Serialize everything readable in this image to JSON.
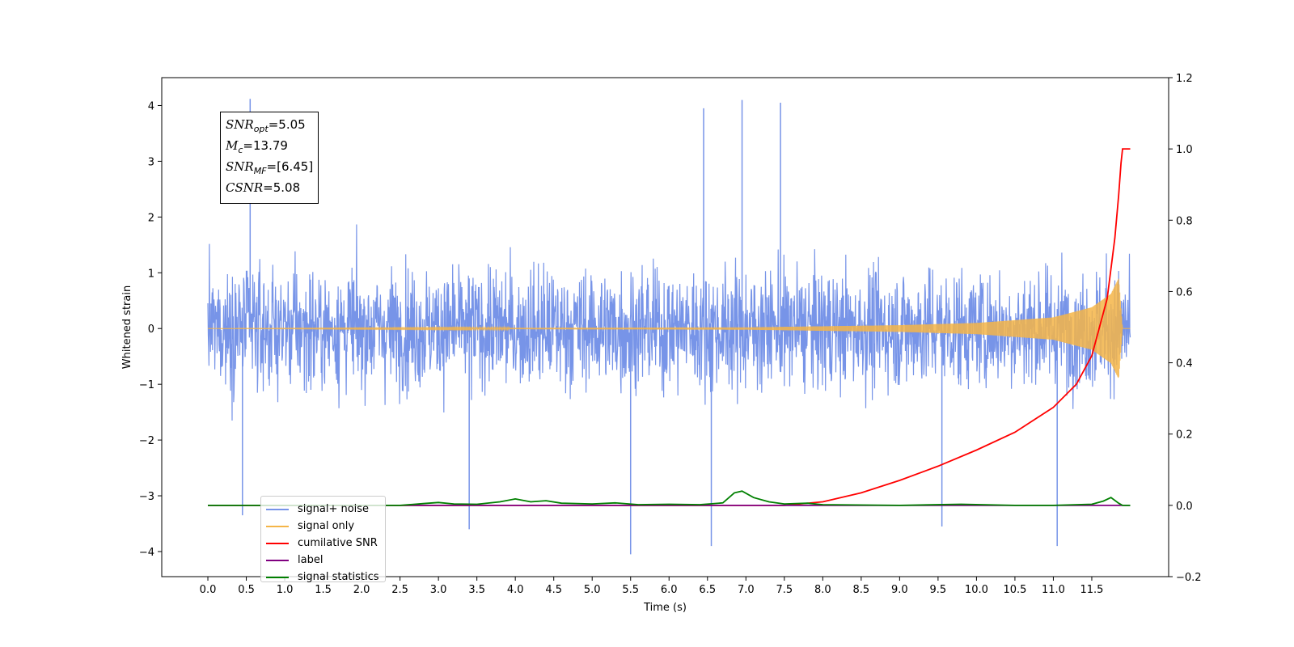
{
  "chart_data": {
    "type": "line",
    "title": "",
    "xlabel": "Time (s)",
    "ylabel": "Whitened strain",
    "ylabel_right": "",
    "xlim": [
      -0.6,
      12.5
    ],
    "ylim": [
      -4.45,
      4.5
    ],
    "ylim_right": [
      -0.2,
      1.2
    ],
    "x_ticks": [
      "0.0",
      "0.5",
      "1.0",
      "1.5",
      "2.0",
      "2.5",
      "3.0",
      "3.5",
      "4.0",
      "4.5",
      "5.0",
      "5.5",
      "6.0",
      "6.5",
      "7.0",
      "7.5",
      "8.0",
      "8.5",
      "9.0",
      "9.5",
      "10.0",
      "10.5",
      "11.0",
      "11.5"
    ],
    "y_ticks": [
      "4",
      "3",
      "2",
      "1",
      "0",
      "−1",
      "−2",
      "−3",
      "−4"
    ],
    "y_ticks_right": [
      "1.2",
      "1.0",
      "0.8",
      "0.6",
      "0.4",
      "0.2",
      "0.0",
      "−0.2"
    ],
    "grid": false,
    "legend_position": "lower-left",
    "series": [
      {
        "name": "signal+ noise",
        "color": "#7794e8",
        "axis": "left",
        "x_range": [
          0.0,
          12.0
        ],
        "typical_range": [
          -1.9,
          2.3
        ],
        "extremes": [
          {
            "x": 0.55,
            "y": 4.12
          },
          {
            "x": 6.95,
            "y": 4.1
          },
          {
            "x": 6.45,
            "y": 3.95
          },
          {
            "x": 7.45,
            "y": 4.05
          },
          {
            "x": 5.5,
            "y": -4.05
          },
          {
            "x": 6.55,
            "y": -3.9
          },
          {
            "x": 11.05,
            "y": -3.9
          },
          {
            "x": 3.4,
            "y": -3.6
          },
          {
            "x": 9.55,
            "y": -3.55
          },
          {
            "x": 0.45,
            "y": -3.35
          }
        ]
      },
      {
        "name": "signal only",
        "color": "#f5b548",
        "axis": "left",
        "x_range": [
          0.0,
          12.0
        ],
        "envelope": [
          [
            0.0,
            0.0
          ],
          [
            7.0,
            0.02
          ],
          [
            9.0,
            0.06
          ],
          [
            10.0,
            0.1
          ],
          [
            11.0,
            0.2
          ],
          [
            11.5,
            0.38
          ],
          [
            11.75,
            0.62
          ],
          [
            11.85,
            0.9
          ],
          [
            11.9,
            0.0
          ],
          [
            12.0,
            0.0
          ]
        ]
      },
      {
        "name": "cumilative SNR",
        "color": "#ff0000",
        "axis": "right",
        "x": [
          0.0,
          7.5,
          8.0,
          8.5,
          9.0,
          9.5,
          10.0,
          10.5,
          11.0,
          11.3,
          11.5,
          11.7,
          11.8,
          11.85,
          11.88,
          11.9,
          12.0
        ],
        "y": [
          0.0,
          0.0,
          0.01,
          0.035,
          0.07,
          0.11,
          0.155,
          0.205,
          0.275,
          0.34,
          0.42,
          0.58,
          0.75,
          0.87,
          0.96,
          1.0,
          1.0
        ]
      },
      {
        "name": "label",
        "color": "#800080",
        "axis": "right",
        "x": [
          0.0,
          12.0
        ],
        "y": [
          0.0,
          0.0
        ]
      },
      {
        "name": "signal statistics",
        "color": "#008000",
        "axis": "right",
        "x": [
          0.0,
          0.5,
          1.0,
          1.5,
          2.0,
          2.5,
          2.8,
          3.0,
          3.2,
          3.5,
          3.8,
          4.0,
          4.2,
          4.4,
          4.6,
          5.0,
          5.3,
          5.6,
          6.0,
          6.4,
          6.7,
          6.85,
          6.95,
          7.1,
          7.3,
          7.5,
          7.8,
          8.0,
          9.0,
          9.8,
          10.5,
          11.0,
          11.5,
          11.65,
          11.75,
          11.85,
          11.9,
          12.0
        ],
        "y": [
          0.0,
          0.0,
          0.0,
          0.0,
          0.0,
          0.0,
          0.005,
          0.008,
          0.004,
          0.003,
          0.01,
          0.018,
          0.01,
          0.013,
          0.006,
          0.004,
          0.007,
          0.002,
          0.003,
          0.002,
          0.007,
          0.035,
          0.04,
          0.022,
          0.01,
          0.004,
          0.006,
          0.002,
          0.0,
          0.003,
          0.0,
          0.0,
          0.003,
          0.012,
          0.022,
          0.006,
          0.0,
          0.0
        ]
      }
    ],
    "annotation": {
      "lines": [
        {
          "sym": "SNR",
          "sub": "opt",
          "val": "=5.05"
        },
        {
          "sym": "M",
          "sub": "c",
          "val": "=13.79"
        },
        {
          "sym": "SNR",
          "sub": "MF",
          "val": "=[6.45]"
        },
        {
          "sym": "CSNR",
          "sub": "",
          "val": "=5.08"
        }
      ]
    },
    "legend": [
      "signal+ noise",
      "signal only",
      "cumilative SNR",
      "label",
      "signal statistics"
    ]
  }
}
